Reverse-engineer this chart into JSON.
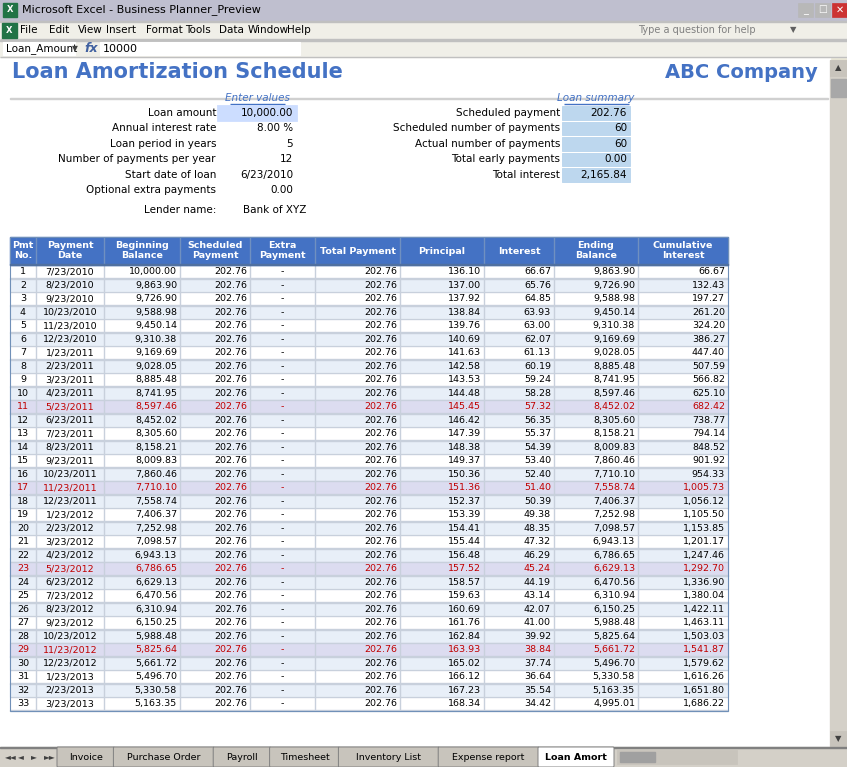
{
  "title": "Loan Amortization Schedule",
  "company": "ABC Company",
  "window_title": "Microsoft Excel - Business Planner_Preview",
  "formula_bar_text": "10000",
  "cell_name": "Loan_Amount",
  "enter_values_label": "Enter values",
  "loan_summary_label": "Loan summary",
  "input_labels": [
    "Loan amount",
    "Annual interest rate",
    "Loan period in years",
    "Number of payments per year",
    "Start date of loan",
    "Optional extra payments"
  ],
  "input_values": [
    "10,000.00",
    "8.00 %",
    "5",
    "12",
    "6/23/2010",
    "0.00"
  ],
  "lender_label": "Lender name:",
  "lender_value": "Bank of XYZ",
  "summary_labels": [
    "Scheduled payment",
    "Scheduled number of payments",
    "Actual number of payments",
    "Total early payments",
    "Total interest"
  ],
  "summary_values": [
    "202.76",
    "60",
    "60",
    "0.00",
    "2,165.84"
  ],
  "col_headers": [
    "Pmt\nNo.",
    "Payment\nDate",
    "Beginning\nBalance",
    "Scheduled\nPayment",
    "Extra\nPayment",
    "Total Payment",
    "Principal",
    "Interest",
    "Ending\nBalance",
    "Cumulative\nInterest"
  ],
  "table_data": [
    [
      1,
      "7/23/2010",
      "10,000.00",
      "202.76",
      "-",
      "202.76",
      "136.10",
      "66.67",
      "9,863.90",
      "66.67"
    ],
    [
      2,
      "8/23/2010",
      "9,863.90",
      "202.76",
      "-",
      "202.76",
      "137.00",
      "65.76",
      "9,726.90",
      "132.43"
    ],
    [
      3,
      "9/23/2010",
      "9,726.90",
      "202.76",
      "-",
      "202.76",
      "137.92",
      "64.85",
      "9,588.98",
      "197.27"
    ],
    [
      4,
      "10/23/2010",
      "9,588.98",
      "202.76",
      "-",
      "202.76",
      "138.84",
      "63.93",
      "9,450.14",
      "261.20"
    ],
    [
      5,
      "11/23/2010",
      "9,450.14",
      "202.76",
      "-",
      "202.76",
      "139.76",
      "63.00",
      "9,310.38",
      "324.20"
    ],
    [
      6,
      "12/23/2010",
      "9,310.38",
      "202.76",
      "-",
      "202.76",
      "140.69",
      "62.07",
      "9,169.69",
      "386.27"
    ],
    [
      7,
      "1/23/2011",
      "9,169.69",
      "202.76",
      "-",
      "202.76",
      "141.63",
      "61.13",
      "9,028.05",
      "447.40"
    ],
    [
      8,
      "2/23/2011",
      "9,028.05",
      "202.76",
      "-",
      "202.76",
      "142.58",
      "60.19",
      "8,885.48",
      "507.59"
    ],
    [
      9,
      "3/23/2011",
      "8,885.48",
      "202.76",
      "-",
      "202.76",
      "143.53",
      "59.24",
      "8,741.95",
      "566.82"
    ],
    [
      10,
      "4/23/2011",
      "8,741.95",
      "202.76",
      "-",
      "202.76",
      "144.48",
      "58.28",
      "8,597.46",
      "625.10"
    ],
    [
      11,
      "5/23/2011",
      "8,597.46",
      "202.76",
      "-",
      "202.76",
      "145.45",
      "57.32",
      "8,452.02",
      "682.42"
    ],
    [
      12,
      "6/23/2011",
      "8,452.02",
      "202.76",
      "-",
      "202.76",
      "146.42",
      "56.35",
      "8,305.60",
      "738.77"
    ],
    [
      13,
      "7/23/2011",
      "8,305.60",
      "202.76",
      "-",
      "202.76",
      "147.39",
      "55.37",
      "8,158.21",
      "794.14"
    ],
    [
      14,
      "8/23/2011",
      "8,158.21",
      "202.76",
      "-",
      "202.76",
      "148.38",
      "54.39",
      "8,009.83",
      "848.52"
    ],
    [
      15,
      "9/23/2011",
      "8,009.83",
      "202.76",
      "-",
      "202.76",
      "149.37",
      "53.40",
      "7,860.46",
      "901.92"
    ],
    [
      16,
      "10/23/2011",
      "7,860.46",
      "202.76",
      "-",
      "202.76",
      "150.36",
      "52.40",
      "7,710.10",
      "954.33"
    ],
    [
      17,
      "11/23/2011",
      "7,710.10",
      "202.76",
      "-",
      "202.76",
      "151.36",
      "51.40",
      "7,558.74",
      "1,005.73"
    ],
    [
      18,
      "12/23/2011",
      "7,558.74",
      "202.76",
      "-",
      "202.76",
      "152.37",
      "50.39",
      "7,406.37",
      "1,056.12"
    ],
    [
      19,
      "1/23/2012",
      "7,406.37",
      "202.76",
      "-",
      "202.76",
      "153.39",
      "49.38",
      "7,252.98",
      "1,105.50"
    ],
    [
      20,
      "2/23/2012",
      "7,252.98",
      "202.76",
      "-",
      "202.76",
      "154.41",
      "48.35",
      "7,098.57",
      "1,153.85"
    ],
    [
      21,
      "3/23/2012",
      "7,098.57",
      "202.76",
      "-",
      "202.76",
      "155.44",
      "47.32",
      "6,943.13",
      "1,201.17"
    ],
    [
      22,
      "4/23/2012",
      "6,943.13",
      "202.76",
      "-",
      "202.76",
      "156.48",
      "46.29",
      "6,786.65",
      "1,247.46"
    ],
    [
      23,
      "5/23/2012",
      "6,786.65",
      "202.76",
      "-",
      "202.76",
      "157.52",
      "45.24",
      "6,629.13",
      "1,292.70"
    ],
    [
      24,
      "6/23/2012",
      "6,629.13",
      "202.76",
      "-",
      "202.76",
      "158.57",
      "44.19",
      "6,470.56",
      "1,336.90"
    ],
    [
      25,
      "7/23/2012",
      "6,470.56",
      "202.76",
      "-",
      "202.76",
      "159.63",
      "43.14",
      "6,310.94",
      "1,380.04"
    ],
    [
      26,
      "8/23/2012",
      "6,310.94",
      "202.76",
      "-",
      "202.76",
      "160.69",
      "42.07",
      "6,150.25",
      "1,422.11"
    ],
    [
      27,
      "9/23/2012",
      "6,150.25",
      "202.76",
      "-",
      "202.76",
      "161.76",
      "41.00",
      "5,988.48",
      "1,463.11"
    ],
    [
      28,
      "10/23/2012",
      "5,988.48",
      "202.76",
      "-",
      "202.76",
      "162.84",
      "39.92",
      "5,825.64",
      "1,503.03"
    ],
    [
      29,
      "11/23/2012",
      "5,825.64",
      "202.76",
      "-",
      "202.76",
      "163.93",
      "38.84",
      "5,661.72",
      "1,541.87"
    ],
    [
      30,
      "12/23/2012",
      "5,661.72",
      "202.76",
      "-",
      "202.76",
      "165.02",
      "37.74",
      "5,496.70",
      "1,579.62"
    ],
    [
      31,
      "1/23/2013",
      "5,496.70",
      "202.76",
      "-",
      "202.76",
      "166.12",
      "36.64",
      "5,330.58",
      "1,616.26"
    ],
    [
      32,
      "2/23/2013",
      "5,330.58",
      "202.76",
      "-",
      "202.76",
      "167.23",
      "35.54",
      "5,163.35",
      "1,651.80"
    ],
    [
      33,
      "3/23/2013",
      "5,163.35",
      "202.76",
      "-",
      "202.76",
      "168.34",
      "34.42",
      "4,995.01",
      "1,686.22"
    ]
  ],
  "highlight_rows": [
    11,
    17,
    23,
    29
  ],
  "header_bg": "#4472C4",
  "header_fg": "#FFFFFF",
  "row_bg_even": "#FFFFFF",
  "row_bg_odd": "#E8EFF8",
  "highlight_fg": "#C00000",
  "title_color": "#4472C4",
  "summary_box_color": "#BDD7EE",
  "window_bg": "#ECE9D8",
  "titlebar_color": "#BFBFCF",
  "menubar_color": "#F0EFE8",
  "sheet_bg": "#FFFFFF"
}
